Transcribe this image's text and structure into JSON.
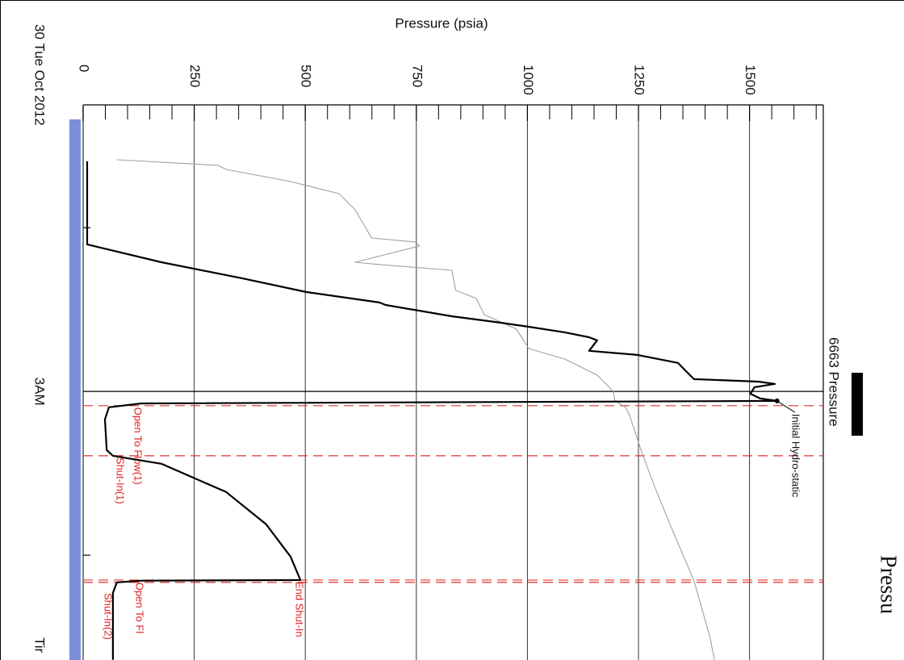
{
  "chart_data": {
    "type": "line",
    "title": "Pressu",
    "ylabel": "Pressure (psia)",
    "xlabel": "Tir",
    "date_label": "30 Tue Oct 2012",
    "orientation": "rotated",
    "ylim": [
      0,
      1666
    ],
    "yticks": [
      0,
      250,
      500,
      750,
      1000,
      1250,
      1500
    ],
    "yminor": [
      50,
      100,
      150,
      200,
      300,
      350,
      400,
      450,
      550,
      600,
      650,
      700,
      800,
      850,
      900,
      950,
      1050,
      1100,
      1150,
      1200,
      1300,
      1350,
      1400,
      1450,
      1550,
      1600,
      1650
    ],
    "xlim": [
      1.25,
      4.65
    ],
    "xticks": [
      {
        "value": 3,
        "label": "3AM"
      }
    ],
    "xminor": [
      2,
      4
    ],
    "grid": true,
    "series": [
      {
        "name": "6663 Pressure",
        "color": "#000000",
        "x": [
          1.595,
          1.999,
          2.102,
          2.211,
          2.309,
          2.393,
          2.457,
          2.472,
          2.541,
          2.58,
          2.605,
          2.639,
          2.669,
          2.688,
          2.752,
          2.777,
          2.826,
          2.876,
          2.925,
          2.94,
          2.954,
          2.974,
          3.014,
          3.043,
          3.058,
          3.073,
          3.097,
          3.171,
          3.358,
          3.393,
          3.442,
          3.614,
          3.812,
          4.009,
          4.152,
          4.156,
          4.166,
          4.23,
          4.639
        ],
        "values": [
          9,
          9,
          9,
          176,
          358,
          503,
          667,
          681,
          830,
          939,
          1003,
          1084,
          1139,
          1157,
          1139,
          1248,
          1339,
          1357,
          1375,
          1520,
          1557,
          1511,
          1502,
          1524,
          1562,
          131,
          58,
          49,
          53,
          67,
          176,
          322,
          412,
          467,
          489,
          131,
          76,
          67,
          67
        ]
      },
      {
        "color": "#a0a0a0",
        "x": [
          1.585,
          1.619,
          1.644,
          1.718,
          1.792,
          1.89,
          2.014,
          2.063,
          2.087,
          2.112,
          2.211,
          2.225,
          2.26,
          2.383,
          2.432,
          2.531,
          2.619,
          2.738,
          2.802,
          2.9,
          2.999,
          3.058,
          3.097,
          3.147,
          3.22,
          3.368,
          3.565,
          3.812,
          4.156,
          4.501,
          4.639
        ],
        "values": [
          76,
          303,
          322,
          467,
          576,
          612,
          639,
          649,
          748,
          757,
          612,
          667,
          830,
          839,
          885,
          903,
          975,
          1003,
          1084,
          1157,
          1193,
          1197,
          1221,
          1230,
          1239,
          1257,
          1284,
          1321,
          1375,
          1411,
          1421
        ]
      }
    ],
    "events": [
      {
        "x": 3.087,
        "label": "Open To Flow(1)"
      },
      {
        "x": 3.393,
        "label": "Shut-In(1)"
      },
      {
        "x": 4.152,
        "label": "End Shut-In"
      },
      {
        "x": 4.166,
        "label": "Open To Fl"
      }
    ],
    "annotations": [
      "Initial Hydro-static",
      "Shut-In(2)"
    ]
  }
}
